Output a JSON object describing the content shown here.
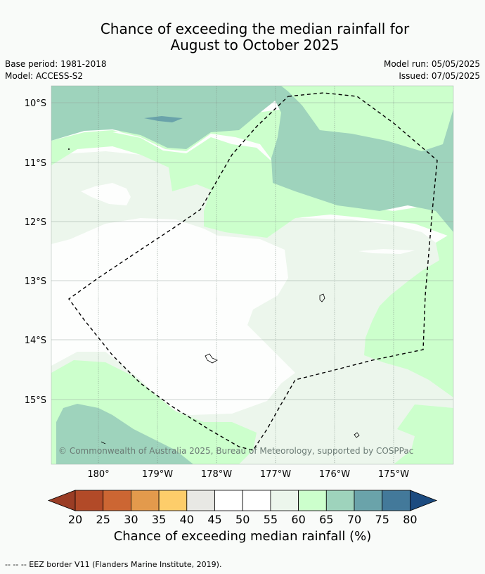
{
  "title_line1": "Chance of exceeding the median rainfall for",
  "title_line2": "August to October 2025",
  "base_period": "Base period: 1981-2018",
  "model": "Model: ACCESS-S2",
  "model_run": "Model run: 05/05/2025",
  "issued": "Issued: 07/05/2025",
  "copyright": "© Commonwealth of Australia 2025, Bureau of Meteorology, supported by COSPPac",
  "lat_labels": [
    "10°S",
    "11°S",
    "12°S",
    "13°S",
    "14°S",
    "15°S"
  ],
  "lon_labels": [
    "180°",
    "179°W",
    "178°W",
    "177°W",
    "176°W",
    "175°W"
  ],
  "colorbar": {
    "ticks": [
      "20",
      "25",
      "30",
      "35",
      "40",
      "45",
      "50",
      "55",
      "60",
      "65",
      "70",
      "75",
      "80"
    ],
    "colors": [
      "#b24a28",
      "#cc6633",
      "#e39a4c",
      "#fdcd6a",
      "#e8e8e4",
      "#ffffff",
      "#ffffff",
      "#ecf6ec",
      "#ccffcc",
      "#9ed3bc",
      "#6aa3aa",
      "#43799a"
    ],
    "under_color": "#9a3d25",
    "over_color": "#1c4b80",
    "label": "Chance of exceeding median rainfall (%)"
  },
  "footnote": "--  --  -- EEZ border V11 (Flanders Marine Institute, 2019)."
}
